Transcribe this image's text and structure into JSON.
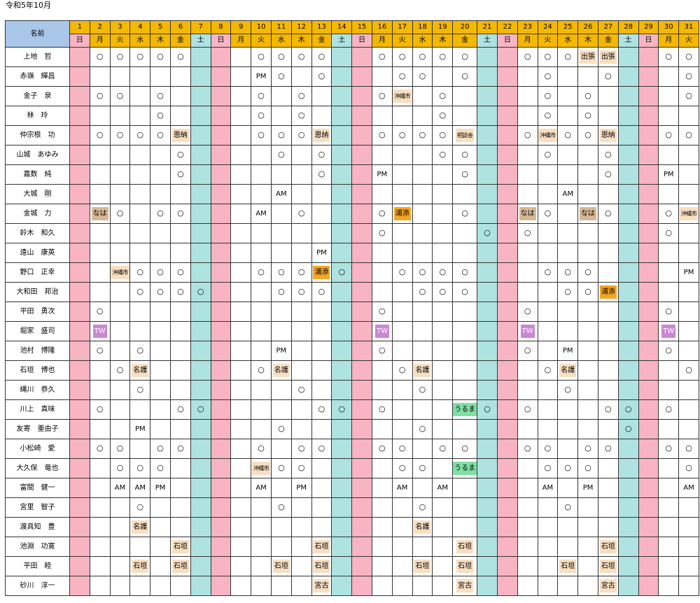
{
  "title": "令和5年10月",
  "header": {
    "name_label": "名前"
  },
  "days": [
    {
      "d": "1",
      "w": "日"
    },
    {
      "d": "2",
      "w": "月"
    },
    {
      "d": "3",
      "w": "火"
    },
    {
      "d": "4",
      "w": "水"
    },
    {
      "d": "5",
      "w": "木"
    },
    {
      "d": "6",
      "w": "金"
    },
    {
      "d": "7",
      "w": "土"
    },
    {
      "d": "8",
      "w": "日"
    },
    {
      "d": "9",
      "w": "月"
    },
    {
      "d": "10",
      "w": "火"
    },
    {
      "d": "11",
      "w": "水"
    },
    {
      "d": "12",
      "w": "木"
    },
    {
      "d": "13",
      "w": "金"
    },
    {
      "d": "14",
      "w": "土"
    },
    {
      "d": "15",
      "w": "日"
    },
    {
      "d": "16",
      "w": "月"
    },
    {
      "d": "17",
      "w": "火"
    },
    {
      "d": "18",
      "w": "水"
    },
    {
      "d": "19",
      "w": "木"
    },
    {
      "d": "20",
      "w": "金"
    },
    {
      "d": "21",
      "w": "土"
    },
    {
      "d": "22",
      "w": "日"
    },
    {
      "d": "23",
      "w": "月"
    },
    {
      "d": "24",
      "w": "火"
    },
    {
      "d": "25",
      "w": "水"
    },
    {
      "d": "26",
      "w": "木"
    },
    {
      "d": "27",
      "w": "金"
    },
    {
      "d": "28",
      "w": "土"
    },
    {
      "d": "29",
      "w": "日"
    },
    {
      "d": "30",
      "w": "月"
    },
    {
      "d": "31",
      "w": "火"
    }
  ],
  "colors": {
    "sunday": "#f9b4c3",
    "saturday": "#aee3e1",
    "header": "#f5b800",
    "name_header": "#a9c7e8"
  },
  "staff": [
    {
      "name": "上地　哲",
      "cells": {
        "2": "○",
        "3": "○",
        "4": "○",
        "5": "○",
        "6": "○",
        "10": "○",
        "11": "○",
        "12": "○",
        "13": "○",
        "16": "○",
        "17": "○",
        "18": "○",
        "19": "○",
        "20": "○",
        "23": "○",
        "24": "○",
        "25": "○",
        "26": "出張",
        "27": "出張",
        "30": "○",
        "31": "○"
      }
    },
    {
      "name": "赤嶺　輝昌",
      "cells": {
        "10": "PM",
        "11": "○",
        "13": "○",
        "17": "○",
        "18": "○",
        "20": "○",
        "24": "○",
        "27": "○",
        "31": "○"
      }
    },
    {
      "name": "金子　泉",
      "cells": {
        "2": "○",
        "3": "○",
        "5": "○",
        "10": "○",
        "12": "○",
        "16": "○",
        "17": "沖縄市",
        "19": "○",
        "24": "○",
        "26": "○",
        "31": "○"
      }
    },
    {
      "name": "林　玲",
      "cells": {
        "5": "○",
        "10": "○",
        "12": "○",
        "19": "○",
        "24": "○",
        "26": "○"
      }
    },
    {
      "name": "仲宗根　功",
      "cells": {
        "2": "○",
        "3": "○",
        "4": "○",
        "5": "○",
        "6": "恩納",
        "10": "○",
        "11": "○",
        "12": "○",
        "13": "恩納",
        "16": "○",
        "17": "○",
        "18": "○",
        "19": "○",
        "20": "相談会",
        "23": "○",
        "24": "沖縄市",
        "25": "○",
        "26": "○",
        "27": "恩納",
        "30": "○",
        "31": "○"
      }
    },
    {
      "name": "山城　あゆみ",
      "cells": {
        "6": "○",
        "11": "○",
        "13": "○",
        "19": "○",
        "20": "○",
        "24": "○",
        "27": "○"
      }
    },
    {
      "name": "嘉数　純",
      "cells": {
        "6": "○",
        "13": "○",
        "16": "PM",
        "20": "○",
        "27": "○",
        "30": "PM"
      }
    },
    {
      "name": "大城　剛",
      "cells": {
        "11": "AM",
        "25": "AM"
      }
    },
    {
      "name": "金城　力",
      "cells": {
        "2": "なは",
        "3": "○",
        "5": "○",
        "6": "○",
        "10": "AM",
        "12": "○",
        "16": "○",
        "17": "浦添",
        "20": "○",
        "23": "なは",
        "24": "○",
        "26": "なは",
        "27": "○",
        "30": "○",
        "31": "沖縄市"
      }
    },
    {
      "name": "鈴木　和久",
      "cells": {
        "16": "○",
        "21": "○",
        "23": "○",
        "30": "○"
      }
    },
    {
      "name": "遠山　康英",
      "cells": {
        "13": "PM"
      }
    },
    {
      "name": "野口　正幸",
      "cells": {
        "3": "沖縄市",
        "4": "○",
        "5": "○",
        "6": "○",
        "10": "○",
        "11": "○",
        "12": "○",
        "13": "浦添",
        "14": "○",
        "17": "○",
        "18": "○",
        "19": "○",
        "20": "○",
        "24": "○",
        "25": "○",
        "26": "○",
        "31": "PM"
      }
    },
    {
      "name": "大和田　邦治",
      "cells": {
        "4": "○",
        "5": "○",
        "6": "○",
        "7": "○",
        "11": "○",
        "12": "○",
        "13": "○",
        "18": "○",
        "19": "○",
        "20": "○",
        "25": "○",
        "26": "○",
        "27": "浦添"
      }
    },
    {
      "name": "平田　勇次",
      "cells": {
        "2": "○",
        "16": "○",
        "23": "○",
        "30": "○"
      }
    },
    {
      "name": "堀家　盛司",
      "cells": {
        "2": "TW",
        "16": "TW",
        "23": "TW",
        "30": "TW"
      }
    },
    {
      "name": "池村　博隆",
      "cells": {
        "2": "○",
        "4": "○",
        "11": "PM",
        "16": "○",
        "23": "○",
        "25": "PM",
        "30": "○"
      }
    },
    {
      "name": "石垣　博也",
      "cells": {
        "3": "○",
        "4": "名護",
        "10": "○",
        "11": "名護",
        "17": "○",
        "18": "名護",
        "24": "○",
        "25": "名護",
        "31": "○"
      }
    },
    {
      "name": "縄川　恭久",
      "cells": {
        "4": "○",
        "12": "○",
        "18": "○",
        "25": "○"
      }
    },
    {
      "name": "川上　真味",
      "cells": {
        "2": "○",
        "6": "○",
        "7": "○",
        "13": "○",
        "14": "○",
        "16": "○",
        "20": "うるま",
        "21": "○",
        "23": "○",
        "27": "○",
        "28": "○",
        "30": "○"
      }
    },
    {
      "name": "友寄　亜由子",
      "cells": {
        "4": "PM",
        "11": "○",
        "18": "○",
        "28": "○"
      }
    },
    {
      "name": "小松崎　愛",
      "cells": {
        "2": "○",
        "3": "○",
        "5": "○",
        "6": "○",
        "10": "○",
        "12": "○",
        "13": "○",
        "16": "○",
        "17": "○",
        "19": "○",
        "20": "○",
        "23": "○",
        "24": "○",
        "26": "○",
        "27": "○",
        "30": "○",
        "31": "○"
      }
    },
    {
      "name": "大久保　竜也",
      "cells": {
        "3": "○",
        "4": "○",
        "5": "○",
        "10": "沖縄市",
        "11": "○",
        "12": "○",
        "17": "○",
        "18": "○",
        "20": "うるま",
        "24": "○",
        "25": "○",
        "26": "○",
        "31": "○"
      }
    },
    {
      "name": "富間　健一",
      "cells": {
        "3": "AM",
        "4": "AM",
        "5": "PM",
        "10": "AM",
        "12": "PM",
        "17": "AM",
        "19": "AM",
        "24": "AM",
        "26": "PM",
        "31": "AM"
      }
    },
    {
      "name": "宮里　智子",
      "cells": {
        "4": "○",
        "11": "○",
        "18": "○",
        "25": "○"
      }
    },
    {
      "name": "渡具知　豊",
      "cells": {
        "4": "名護",
        "18": "名護"
      }
    },
    {
      "name": "池淵　功寛",
      "cells": {
        "6": "石垣",
        "13": "石垣",
        "20": "石垣",
        "27": "石垣"
      }
    },
    {
      "name": "平田　睦",
      "cells": {
        "4": "石垣",
        "6": "石垣",
        "11": "石垣",
        "13": "石垣",
        "18": "石垣",
        "20": "石垣",
        "25": "石垣",
        "27": "石垣"
      }
    },
    {
      "name": "砂川　淳一",
      "cells": {
        "13": "宮古",
        "20": "宮古",
        "27": "宮古"
      }
    }
  ]
}
